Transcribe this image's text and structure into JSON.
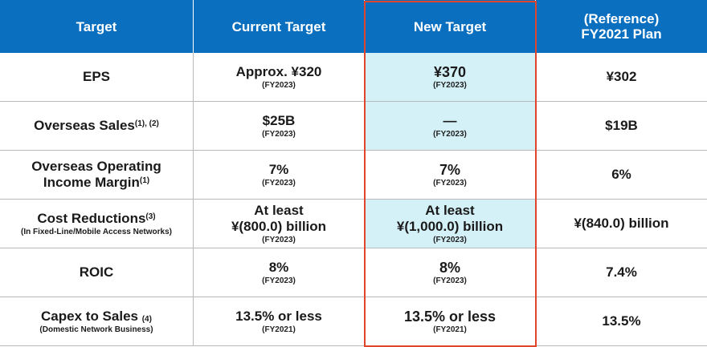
{
  "header": {
    "col1": "Target",
    "col2": "Current Target",
    "col3": "New Target",
    "col4_line1": "(Reference)",
    "col4_line2": "FY2021 Plan"
  },
  "rows": [
    {
      "label": "EPS",
      "label_sup": "",
      "label_sub_note": "",
      "label_subline": "",
      "current_lines": [
        "Approx. ¥320"
      ],
      "current_year": "(FY2023)",
      "new_lines": [
        "¥370"
      ],
      "new_year": "(FY2023)",
      "reference": "¥302"
    },
    {
      "label": "Overseas Sales",
      "label_sup": "(1), (2)",
      "label_sub_note": "",
      "label_subline": "",
      "current_lines": [
        "$25B"
      ],
      "current_year": "(FY2023)",
      "new_lines": [
        "—"
      ],
      "new_year": "(FY2023)",
      "reference": "$19B"
    },
    {
      "label": "Overseas Operating",
      "label2": "Income Margin",
      "label_sup": "(1)",
      "label_subline": "",
      "current_lines": [
        "7%"
      ],
      "current_year": "(FY2023)",
      "new_lines": [
        "7%"
      ],
      "new_year": "(FY2023)",
      "reference": "6%"
    },
    {
      "label": "Cost Reductions",
      "label_sup": "(3)",
      "label_subline": "(In Fixed-Line/Mobile Access Networks)",
      "current_lines": [
        "At least",
        "¥(800.0) billion"
      ],
      "current_year": "(FY2023)",
      "new_lines": [
        "At least",
        "¥(1,000.0) billion"
      ],
      "new_year": "(FY2023)",
      "reference": "¥(840.0) billion"
    },
    {
      "label": "ROIC",
      "label_sup": "",
      "label_subline": "",
      "current_lines": [
        "8%"
      ],
      "current_year": "(FY2023)",
      "new_lines": [
        "8%"
      ],
      "new_year": "(FY2023)",
      "reference": "7.4%"
    },
    {
      "label": "Capex to Sales",
      "label_subnote": "(4)",
      "label_subline": "(Domestic Network Business)",
      "current_lines": [
        "13.5% or less"
      ],
      "current_year": "(FY2021)",
      "new_lines": [
        "13.5% or less"
      ],
      "new_year": "(FY2021)",
      "reference": "13.5%"
    }
  ],
  "colors": {
    "header_bg": "#0b6fc0",
    "highlight_bg": "#d4f1f8",
    "frame": "#e0442a"
  }
}
